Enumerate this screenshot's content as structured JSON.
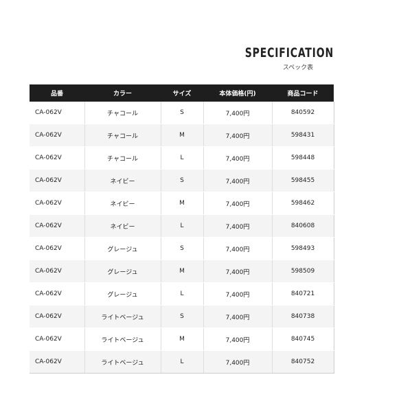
{
  "header": {
    "title": "SPECIFICATION",
    "subtitle": "スペック表"
  },
  "table": {
    "columns": [
      "品番",
      "カラー",
      "サイズ",
      "本体価格(円)",
      "商品コード"
    ],
    "rows": [
      [
        "CA-062V",
        "チャコール",
        "S",
        "7,400円",
        "840592"
      ],
      [
        "CA-062V",
        "チャコール",
        "M",
        "7,400円",
        "598431"
      ],
      [
        "CA-062V",
        "チャコール",
        "L",
        "7,400円",
        "598448"
      ],
      [
        "CA-062V",
        "ネイビー",
        "S",
        "7,400円",
        "598455"
      ],
      [
        "CA-062V",
        "ネイビー",
        "M",
        "7,400円",
        "598462"
      ],
      [
        "CA-062V",
        "ネイビー",
        "L",
        "7,400円",
        "840608"
      ],
      [
        "CA-062V",
        "グレージュ",
        "S",
        "7,400円",
        "598493"
      ],
      [
        "CA-062V",
        "グレージュ",
        "M",
        "7,400円",
        "598509"
      ],
      [
        "CA-062V",
        "グレージュ",
        "L",
        "7,400円",
        "840721"
      ],
      [
        "CA-062V",
        "ライトベージュ",
        "S",
        "7,400円",
        "840738"
      ],
      [
        "CA-062V",
        "ライトベージュ",
        "M",
        "7,400円",
        "840745"
      ],
      [
        "CA-062V",
        "ライトベージュ",
        "L",
        "7,400円",
        "840752"
      ]
    ]
  },
  "colors": {
    "header_bg": "#1e1e1e",
    "alt_row_bg": "#f4f4f4"
  }
}
